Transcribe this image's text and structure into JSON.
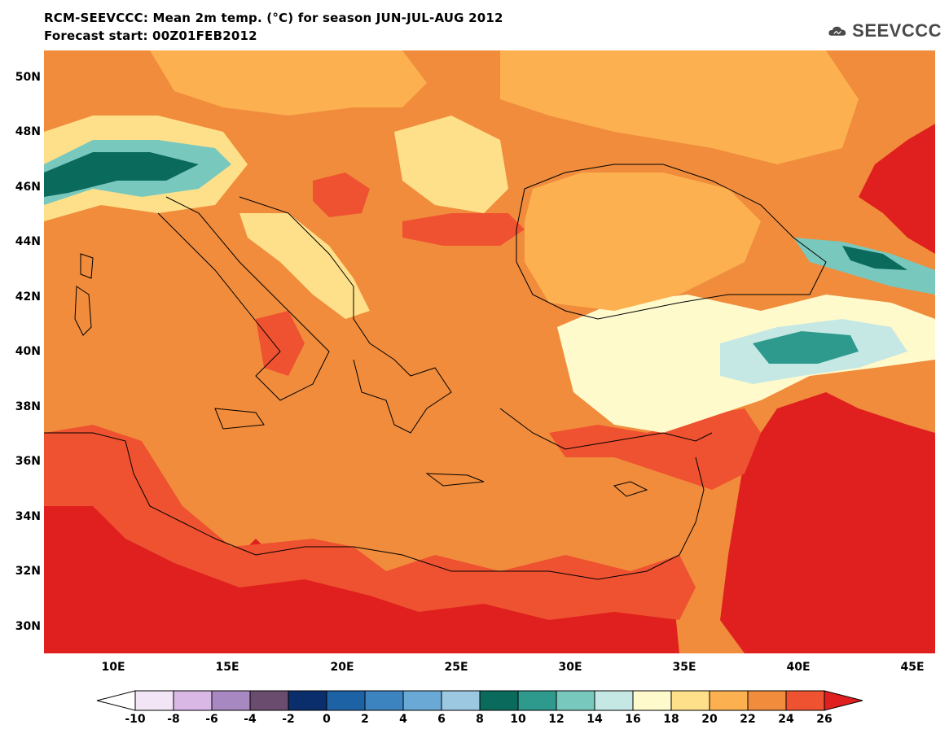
{
  "header": {
    "title": "RCM-SEEVCCC: Mean 2m temp. (°C) for season JUN-JUL-AUG 2012",
    "subtitle": "Forecast start: 00Z01FEB2012",
    "logo_text": "SEEVCCC"
  },
  "map": {
    "lon_range": [
      7,
      46
    ],
    "lat_range": [
      29,
      51
    ],
    "lat_ticks": [
      "50N",
      "48N",
      "46N",
      "44N",
      "42N",
      "40N",
      "38N",
      "36N",
      "34N",
      "32N",
      "30N"
    ],
    "lon_ticks": [
      "10E",
      "15E",
      "20E",
      "25E",
      "30E",
      "35E",
      "40E",
      "45E"
    ],
    "base_color": "#F08C3C"
  },
  "legend": {
    "labels": [
      "-10",
      "-8",
      "-6",
      "-4",
      "-2",
      "0",
      "2",
      "4",
      "6",
      "8",
      "10",
      "12",
      "14",
      "16",
      "18",
      "20",
      "22",
      "24",
      "26"
    ],
    "under_color": "#FFFFFF",
    "over_color": "#E0201E",
    "colors": [
      "#F2E6F6",
      "#D9B8E6",
      "#A888C0",
      "#6A4C6E",
      "#0A2E6B",
      "#1E62A6",
      "#3C84C0",
      "#6AA8D6",
      "#9CC8E2",
      "#0A6A5C",
      "#2E9A8E",
      "#78C8BE",
      "#C6E8E4",
      "#FFFACC",
      "#FFE08A",
      "#FCB050",
      "#F08C3C",
      "#EF5230"
    ]
  }
}
